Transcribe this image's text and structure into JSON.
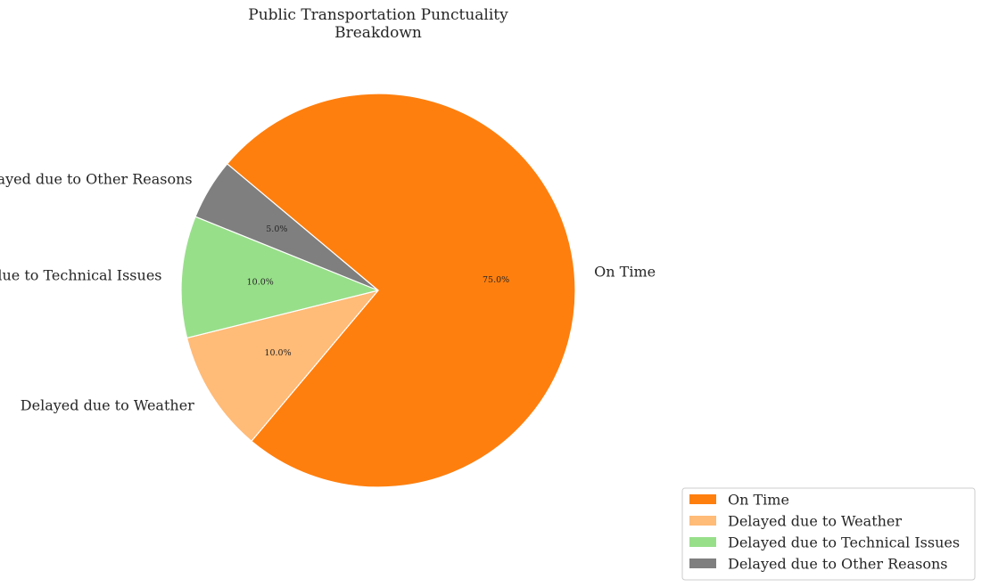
{
  "chart_data": {
    "type": "pie",
    "title": "Public Transportation Punctuality\nBreakdown",
    "categories": [
      "On Time",
      "Delayed due to Weather",
      "Delayed due to Technical Issues",
      "Delayed due to Other Reasons"
    ],
    "values": [
      75,
      10,
      10,
      5
    ],
    "value_labels": [
      "75.0%",
      "10.0%",
      "10.0%",
      "5.0%"
    ],
    "colors": [
      "#ff7f0e",
      "#ffbb78",
      "#98df8a",
      "#7f7f7f"
    ],
    "start_angle_deg": 140,
    "direction": "clockwise",
    "legend": {
      "position": "bottom-right",
      "entries": [
        "On Time",
        "Delayed due to Weather",
        "Delayed due to Technical Issues",
        "Delayed due to Other Reasons"
      ]
    }
  }
}
